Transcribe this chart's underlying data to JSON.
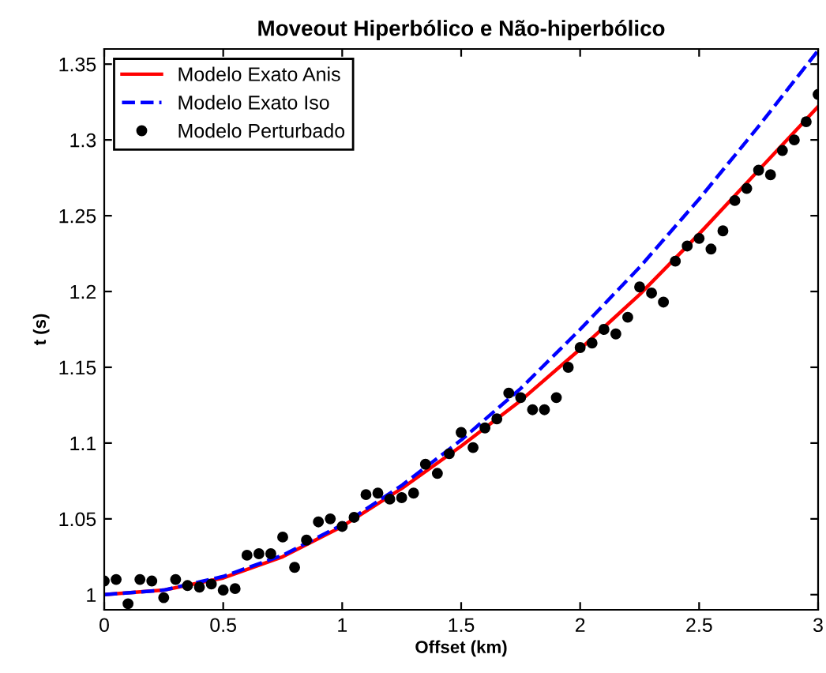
{
  "chart_data": {
    "type": "line",
    "title": "Moveout Hiperbólico e Não-hiperbólico",
    "xlabel": "Offset (km)",
    "ylabel": "t (s)",
    "xlim": [
      0,
      3
    ],
    "ylim": [
      0.99,
      1.36
    ],
    "xticks": [
      0,
      0.5,
      1,
      1.5,
      2,
      2.5,
      3
    ],
    "yticks": [
      1,
      1.05,
      1.1,
      1.15,
      1.2,
      1.25,
      1.3,
      1.35
    ],
    "grid": false,
    "legend": "top left",
    "series": [
      {
        "name": "Modelo Exato Anis",
        "color": "#ff0000",
        "line_style": "solid",
        "marker": "none",
        "x": [
          0,
          0.25,
          0.5,
          0.75,
          1,
          1.25,
          1.5,
          1.75,
          2,
          2.25,
          2.5,
          2.75,
          3
        ],
        "values": [
          1.0,
          1.003,
          1.011,
          1.025,
          1.045,
          1.07,
          1.098,
          1.128,
          1.162,
          1.198,
          1.238,
          1.28,
          1.322
        ]
      },
      {
        "name": "Modelo Exato Iso",
        "color": "#0000ff",
        "line_style": "dashed",
        "marker": "none",
        "x": [
          0,
          0.25,
          0.5,
          0.75,
          1,
          1.25,
          1.5,
          1.75,
          2,
          2.25,
          2.5,
          2.75,
          3
        ],
        "values": [
          1.0,
          1.003,
          1.012,
          1.026,
          1.046,
          1.072,
          1.102,
          1.136,
          1.175,
          1.216,
          1.261,
          1.309,
          1.359
        ]
      },
      {
        "name": "Modelo Perturbado",
        "type": "scatter",
        "color": "#000000",
        "marker": "circle",
        "x": [
          0,
          0.05,
          0.1,
          0.15,
          0.2,
          0.25,
          0.3,
          0.35,
          0.4,
          0.45,
          0.5,
          0.55,
          0.6,
          0.65,
          0.7,
          0.75,
          0.8,
          0.85,
          0.9,
          0.95,
          1.0,
          1.05,
          1.1,
          1.15,
          1.2,
          1.25,
          1.3,
          1.35,
          1.4,
          1.45,
          1.5,
          1.55,
          1.6,
          1.65,
          1.7,
          1.75,
          1.8,
          1.85,
          1.9,
          1.95,
          2.0,
          2.05,
          2.1,
          2.15,
          2.2,
          2.25,
          2.3,
          2.35,
          2.4,
          2.45,
          2.5,
          2.55,
          2.6,
          2.65,
          2.7,
          2.75,
          2.8,
          2.85,
          2.9,
          2.95,
          3.0
        ],
        "values": [
          1.009,
          1.01,
          0.994,
          1.01,
          1.009,
          0.998,
          1.01,
          1.006,
          1.005,
          1.007,
          1.003,
          1.004,
          1.026,
          1.027,
          1.027,
          1.038,
          1.018,
          1.036,
          1.048,
          1.05,
          1.045,
          1.051,
          1.066,
          1.067,
          1.063,
          1.064,
          1.067,
          1.086,
          1.08,
          1.093,
          1.107,
          1.097,
          1.11,
          1.116,
          1.133,
          1.13,
          1.122,
          1.122,
          1.13,
          1.15,
          1.163,
          1.166,
          1.175,
          1.172,
          1.183,
          1.203,
          1.199,
          1.193,
          1.22,
          1.23,
          1.235,
          1.228,
          1.24,
          1.26,
          1.268,
          1.28,
          1.277,
          1.293,
          1.3,
          1.312,
          1.33
        ]
      }
    ]
  }
}
